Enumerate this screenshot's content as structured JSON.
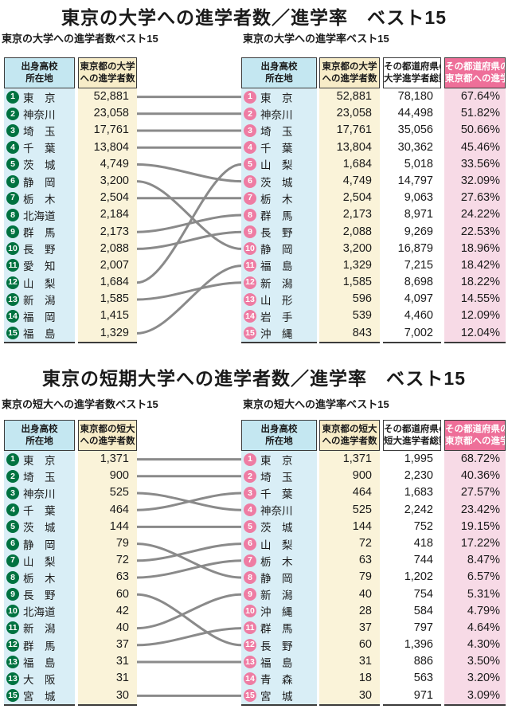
{
  "colors": {
    "header_blue": "#c4e7f1",
    "body_blue": "#d9eef6",
    "header_cream": "#f7ecc8",
    "body_cream": "#faf3d9",
    "pink_header": "#ee6f99",
    "pink_body": "#f7dae6",
    "green_badge": "#007240",
    "pink_badge": "#ee7ca3",
    "line_gray": "#8a8a8a"
  },
  "sections": [
    {
      "title": "東京の大学への進学者数／進学率　ベスト15",
      "left_subtitle": "東京の大学への進学者数ベスト15",
      "right_subtitle": "東京の大学への進学率ベスト15",
      "left_table": {
        "headers": [
          [
            "出身高校",
            "所在地"
          ],
          [
            "東京都の大学",
            "への進学者数"
          ]
        ],
        "rows": [
          {
            "rank": "1",
            "pref": "東　京",
            "count": "52,881"
          },
          {
            "rank": "2",
            "pref": "神奈川",
            "count": "23,058"
          },
          {
            "rank": "3",
            "pref": "埼　玉",
            "count": "17,761"
          },
          {
            "rank": "4",
            "pref": "千　葉",
            "count": "13,804"
          },
          {
            "rank": "5",
            "pref": "茨　城",
            "count": "4,749"
          },
          {
            "rank": "6",
            "pref": "静　岡",
            "count": "3,200"
          },
          {
            "rank": "7",
            "pref": "栃　木",
            "count": "2,504"
          },
          {
            "rank": "8",
            "pref": "北海道",
            "count": "2,184"
          },
          {
            "rank": "9",
            "pref": "群　馬",
            "count": "2,173"
          },
          {
            "rank": "10",
            "pref": "長　野",
            "count": "2,088"
          },
          {
            "rank": "11",
            "pref": "愛　知",
            "count": "2,007"
          },
          {
            "rank": "12",
            "pref": "山　梨",
            "count": "1,684"
          },
          {
            "rank": "13",
            "pref": "新　潟",
            "count": "1,585"
          },
          {
            "rank": "14",
            "pref": "福　岡",
            "count": "1,415"
          },
          {
            "rank": "15",
            "pref": "福　島",
            "count": "1,329"
          }
        ]
      },
      "right_table": {
        "headers": [
          [
            "出身高校",
            "所在地"
          ],
          [
            "東京都の大学",
            "への進学者数"
          ],
          [
            "その都道府県の",
            "大学進学者総数"
          ],
          [
            "その都道府県の",
            "東京都への進学率"
          ]
        ],
        "rows": [
          {
            "rank": "1",
            "pref": "東　京",
            "count": "52,881",
            "total": "78,180",
            "rate": "67.64%"
          },
          {
            "rank": "2",
            "pref": "神奈川",
            "count": "23,058",
            "total": "44,498",
            "rate": "51.82%"
          },
          {
            "rank": "3",
            "pref": "埼　玉",
            "count": "17,761",
            "total": "35,056",
            "rate": "50.66%"
          },
          {
            "rank": "4",
            "pref": "千　葉",
            "count": "13,804",
            "total": "30,362",
            "rate": "45.46%"
          },
          {
            "rank": "5",
            "pref": "山　梨",
            "count": "1,684",
            "total": "5,018",
            "rate": "33.56%"
          },
          {
            "rank": "6",
            "pref": "茨　城",
            "count": "4,749",
            "total": "14,797",
            "rate": "32.09%"
          },
          {
            "rank": "7",
            "pref": "栃　木",
            "count": "2,504",
            "total": "9,063",
            "rate": "27.63%"
          },
          {
            "rank": "8",
            "pref": "群　馬",
            "count": "2,173",
            "total": "8,971",
            "rate": "24.22%"
          },
          {
            "rank": "9",
            "pref": "長　野",
            "count": "2,088",
            "total": "9,269",
            "rate": "22.53%"
          },
          {
            "rank": "10",
            "pref": "静　岡",
            "count": "3,200",
            "total": "16,879",
            "rate": "18.96%"
          },
          {
            "rank": "11",
            "pref": "福　島",
            "count": "1,329",
            "total": "7,215",
            "rate": "18.42%"
          },
          {
            "rank": "12",
            "pref": "新　潟",
            "count": "1,585",
            "total": "8,698",
            "rate": "18.22%"
          },
          {
            "rank": "13",
            "pref": "山　形",
            "count": "596",
            "total": "4,097",
            "rate": "14.55%"
          },
          {
            "rank": "14",
            "pref": "岩　手",
            "count": "539",
            "total": "4,460",
            "rate": "12.09%"
          },
          {
            "rank": "15",
            "pref": "沖　縄",
            "count": "843",
            "total": "7,002",
            "rate": "12.04%"
          }
        ]
      },
      "connections": [
        [
          0,
          0
        ],
        [
          1,
          1
        ],
        [
          2,
          2
        ],
        [
          3,
          3
        ],
        [
          4,
          5
        ],
        [
          5,
          9
        ],
        [
          6,
          6
        ],
        [
          8,
          7
        ],
        [
          9,
          8
        ],
        [
          11,
          4
        ],
        [
          12,
          11
        ],
        [
          14,
          10
        ]
      ]
    },
    {
      "title": "東京の短期大学への進学者数／進学率　ベスト15",
      "left_subtitle": "東京の短大への進学者数ベスト15",
      "right_subtitle": "東京の短大への進学率ベスト15",
      "left_table": {
        "headers": [
          [
            "出身高校",
            "所在地"
          ],
          [
            "東京都の短大",
            "への進学者数"
          ]
        ],
        "rows": [
          {
            "rank": "1",
            "pref": "東　京",
            "count": "1,371"
          },
          {
            "rank": "2",
            "pref": "埼　玉",
            "count": "900"
          },
          {
            "rank": "3",
            "pref": "神奈川",
            "count": "525"
          },
          {
            "rank": "4",
            "pref": "千　葉",
            "count": "464"
          },
          {
            "rank": "5",
            "pref": "茨　城",
            "count": "144"
          },
          {
            "rank": "6",
            "pref": "静　岡",
            "count": "79"
          },
          {
            "rank": "7",
            "pref": "山　梨",
            "count": "72"
          },
          {
            "rank": "8",
            "pref": "栃　木",
            "count": "63"
          },
          {
            "rank": "9",
            "pref": "長　野",
            "count": "60"
          },
          {
            "rank": "10",
            "pref": "北海道",
            "count": "42"
          },
          {
            "rank": "11",
            "pref": "新　潟",
            "count": "40"
          },
          {
            "rank": "12",
            "pref": "群　馬",
            "count": "37"
          },
          {
            "rank": "13",
            "pref": "福　島",
            "count": "31"
          },
          {
            "rank": "13",
            "pref": "大　阪",
            "count": "31"
          },
          {
            "rank": "15",
            "pref": "宮　城",
            "count": "30"
          }
        ]
      },
      "right_table": {
        "headers": [
          [
            "出身高校",
            "所在地"
          ],
          [
            "東京都の短大",
            "への進学者数"
          ],
          [
            "その都道府県の",
            "短大進学者総数"
          ],
          [
            "その都道府県の",
            "東京都への進学率"
          ]
        ],
        "rows": [
          {
            "rank": "1",
            "pref": "東　京",
            "count": "1,371",
            "total": "1,995",
            "rate": "68.72%"
          },
          {
            "rank": "2",
            "pref": "埼　玉",
            "count": "900",
            "total": "2,230",
            "rate": "40.36%"
          },
          {
            "rank": "3",
            "pref": "千　葉",
            "count": "464",
            "total": "1,683",
            "rate": "27.57%"
          },
          {
            "rank": "4",
            "pref": "神奈川",
            "count": "525",
            "total": "2,242",
            "rate": "23.42%"
          },
          {
            "rank": "5",
            "pref": "茨　城",
            "count": "144",
            "total": "752",
            "rate": "19.15%"
          },
          {
            "rank": "6",
            "pref": "山　梨",
            "count": "72",
            "total": "418",
            "rate": "17.22%"
          },
          {
            "rank": "7",
            "pref": "栃　木",
            "count": "63",
            "total": "744",
            "rate": "8.47%"
          },
          {
            "rank": "8",
            "pref": "静　岡",
            "count": "79",
            "total": "1,202",
            "rate": "6.57%"
          },
          {
            "rank": "9",
            "pref": "新　潟",
            "count": "40",
            "total": "754",
            "rate": "5.31%"
          },
          {
            "rank": "10",
            "pref": "沖　縄",
            "count": "28",
            "total": "584",
            "rate": "4.79%"
          },
          {
            "rank": "11",
            "pref": "群　馬",
            "count": "37",
            "total": "797",
            "rate": "4.64%"
          },
          {
            "rank": "12",
            "pref": "長　野",
            "count": "60",
            "total": "1,396",
            "rate": "4.30%"
          },
          {
            "rank": "13",
            "pref": "福　島",
            "count": "31",
            "total": "886",
            "rate": "3.50%"
          },
          {
            "rank": "14",
            "pref": "青　森",
            "count": "18",
            "total": "563",
            "rate": "3.20%"
          },
          {
            "rank": "15",
            "pref": "宮　城",
            "count": "30",
            "total": "971",
            "rate": "3.09%"
          }
        ]
      },
      "connections": [
        [
          0,
          0
        ],
        [
          1,
          1
        ],
        [
          2,
          3
        ],
        [
          3,
          2
        ],
        [
          4,
          4
        ],
        [
          5,
          7
        ],
        [
          6,
          5
        ],
        [
          7,
          6
        ],
        [
          8,
          11
        ],
        [
          10,
          8
        ],
        [
          11,
          10
        ],
        [
          12,
          12
        ],
        [
          14,
          14
        ]
      ]
    }
  ]
}
